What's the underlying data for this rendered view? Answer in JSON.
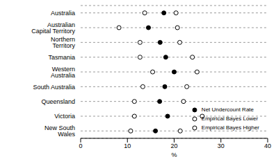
{
  "chart_data": {
    "type": "dot",
    "orientation": "horizontal",
    "categories": [
      "New South Wales",
      "Victoria",
      "Queensland",
      "South Australia",
      "Western Australia",
      "Tasmania",
      "Northern Territory",
      "Australian Capital Territory",
      "Australia"
    ],
    "series": [
      {
        "name": "Net Undercount Rate",
        "color": "#000000",
        "marker": "circle",
        "values": [
          16.0,
          18.6,
          16.9,
          18.0,
          20.0,
          18.2,
          17.0,
          14.5,
          17.8
        ]
      },
      {
        "name": "Empirical Bayes Lower",
        "color": "#000000",
        "marker": "open_circle",
        "values": [
          10.7,
          11.5,
          11.5,
          13.3,
          15.4,
          12.7,
          12.7,
          8.2,
          13.7
        ]
      },
      {
        "name": "Empirical Bayes Higher",
        "color": "#000000",
        "marker": "open_circle",
        "values": [
          21.3,
          26.0,
          22.0,
          22.7,
          24.9,
          23.9,
          21.2,
          20.7,
          20.4
        ]
      }
    ],
    "xlim": [
      0,
      40
    ],
    "xticks": [
      0,
      10,
      20,
      30,
      40
    ],
    "x_label": "%",
    "grid": true,
    "legend": "lower right"
  }
}
